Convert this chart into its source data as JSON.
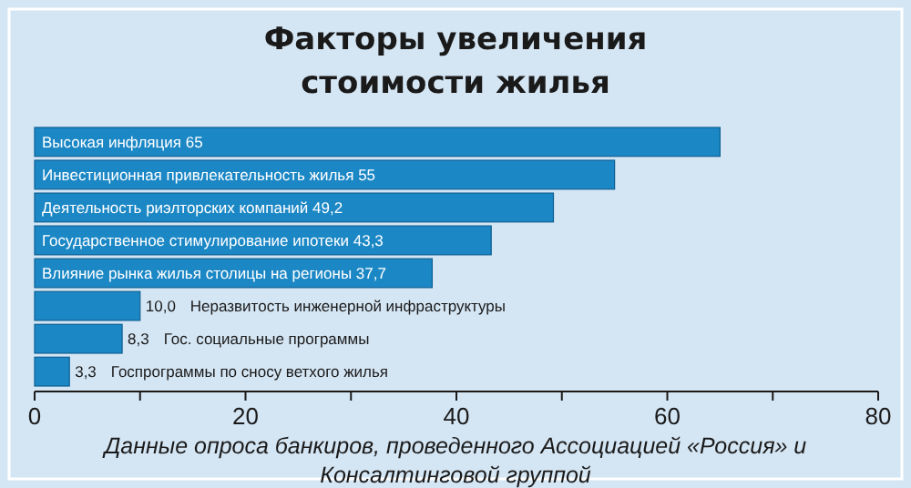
{
  "chart_data": {
    "type": "bar",
    "orientation": "horizontal",
    "title": "Факторы увеличения стоимости жилья",
    "categories": [
      "Высокая инфляция",
      "Инвестиционная привлекательность жилья",
      "Деятельность риэлторских компаний",
      "Государственное стимулирование ипотеки",
      "Влияние рынка жилья столицы на регионы",
      "Неразвитость инженерной инфраструктуры",
      "Гос. социальные программы",
      "Госпрограммы по сносу ветхого жилья"
    ],
    "values": [
      65,
      55,
      49.2,
      43.3,
      37.7,
      10.0,
      8.3,
      3.3
    ],
    "value_labels": [
      "65",
      "55",
      "49,2",
      "43,3",
      "37,7",
      "10,0",
      "8,3",
      "3,3"
    ],
    "color": "#1b87c5",
    "xlim": [
      0,
      80
    ],
    "xticks": [
      0,
      {
        "value": 10,
        "label": null
      },
      20,
      {
        "value": 30,
        "label": null
      },
      40,
      {
        "value": 50,
        "label": null
      },
      60,
      {
        "value": 70,
        "label": null
      },
      80
    ],
    "annotations": [
      "Данные опроса банкиров, проведенного Ассоциацией «Россия» и Консалтинговой группой"
    ],
    "grid": false
  }
}
